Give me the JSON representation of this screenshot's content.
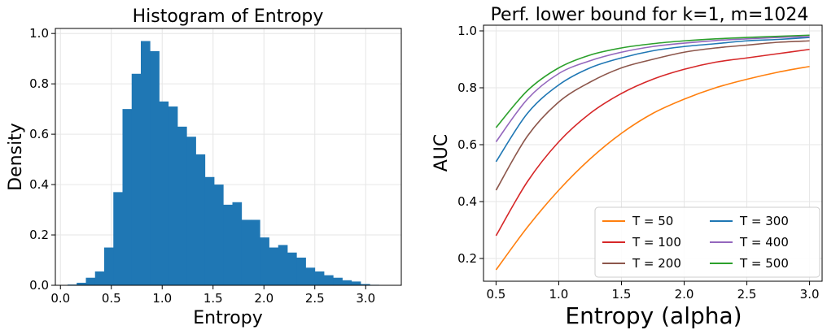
{
  "chart_data": [
    {
      "type": "bar",
      "title": "Histogram of Entropy",
      "xlabel": "Entropy",
      "ylabel": "Density",
      "xlim": [
        -0.05,
        3.35
      ],
      "ylim": [
        0,
        1.02
      ],
      "xticks": [
        "0.0",
        "0.5",
        "1.0",
        "1.5",
        "2.0",
        "2.5",
        "3.0"
      ],
      "yticks": [
        "0.0",
        "0.2",
        "0.4",
        "0.6",
        "0.8",
        "1.0"
      ],
      "grid": true,
      "color": "#1f77b4",
      "bin_edges": [
        0.07,
        0.16,
        0.25,
        0.34,
        0.43,
        0.52,
        0.61,
        0.7,
        0.79,
        0.88,
        0.97,
        1.06,
        1.15,
        1.24,
        1.33,
        1.42,
        1.51,
        1.6,
        1.69,
        1.78,
        1.87,
        1.96,
        2.05,
        2.14,
        2.23,
        2.32,
        2.41,
        2.5,
        2.59,
        2.68,
        2.77,
        2.86,
        2.95,
        3.04,
        3.13
      ],
      "values": [
        0.003,
        0.01,
        0.03,
        0.055,
        0.15,
        0.37,
        0.7,
        0.84,
        0.97,
        0.93,
        0.73,
        0.71,
        0.63,
        0.59,
        0.52,
        0.43,
        0.4,
        0.32,
        0.33,
        0.26,
        0.26,
        0.19,
        0.15,
        0.16,
        0.13,
        0.11,
        0.07,
        0.055,
        0.04,
        0.03,
        0.02,
        0.015,
        0.005,
        0.002
      ]
    },
    {
      "type": "line",
      "title": "Perf. lower bound for k=1, m=1024",
      "xlabel": "Entropy (alpha)",
      "ylabel": "AUC",
      "xlim": [
        0.4,
        3.1
      ],
      "ylim": [
        0.12,
        1.02
      ],
      "xticks": [
        "0.5",
        "1.0",
        "1.5",
        "2.0",
        "2.5",
        "3.0"
      ],
      "yticks": [
        "0.2",
        "0.4",
        "0.6",
        "0.8",
        "1.0"
      ],
      "grid": true,
      "legend": "lower-right",
      "x": [
        0.5,
        0.75,
        1.0,
        1.25,
        1.5,
        1.75,
        2.0,
        2.25,
        2.5,
        2.75,
        3.0
      ],
      "series": [
        {
          "name": "T = 50",
          "color": "#ff7f0e",
          "values": [
            0.16,
            0.31,
            0.44,
            0.55,
            0.64,
            0.71,
            0.76,
            0.8,
            0.83,
            0.855,
            0.875
          ]
        },
        {
          "name": "T = 100",
          "color": "#d62728",
          "values": [
            0.28,
            0.47,
            0.61,
            0.71,
            0.78,
            0.83,
            0.865,
            0.89,
            0.905,
            0.92,
            0.935
          ]
        },
        {
          "name": "T = 200",
          "color": "#8c564b",
          "values": [
            0.44,
            0.63,
            0.75,
            0.82,
            0.87,
            0.9,
            0.925,
            0.94,
            0.95,
            0.96,
            0.965
          ]
        },
        {
          "name": "T = 300",
          "color": "#1f77b4",
          "values": [
            0.54,
            0.71,
            0.81,
            0.87,
            0.905,
            0.93,
            0.945,
            0.955,
            0.965,
            0.97,
            0.977
          ]
        },
        {
          "name": "T = 400",
          "color": "#9467bd",
          "values": [
            0.61,
            0.76,
            0.85,
            0.895,
            0.925,
            0.945,
            0.957,
            0.966,
            0.972,
            0.977,
            0.98
          ]
        },
        {
          "name": "T = 500",
          "color": "#2ca02c",
          "values": [
            0.66,
            0.79,
            0.87,
            0.915,
            0.94,
            0.955,
            0.965,
            0.972,
            0.977,
            0.981,
            0.985
          ]
        }
      ]
    }
  ]
}
